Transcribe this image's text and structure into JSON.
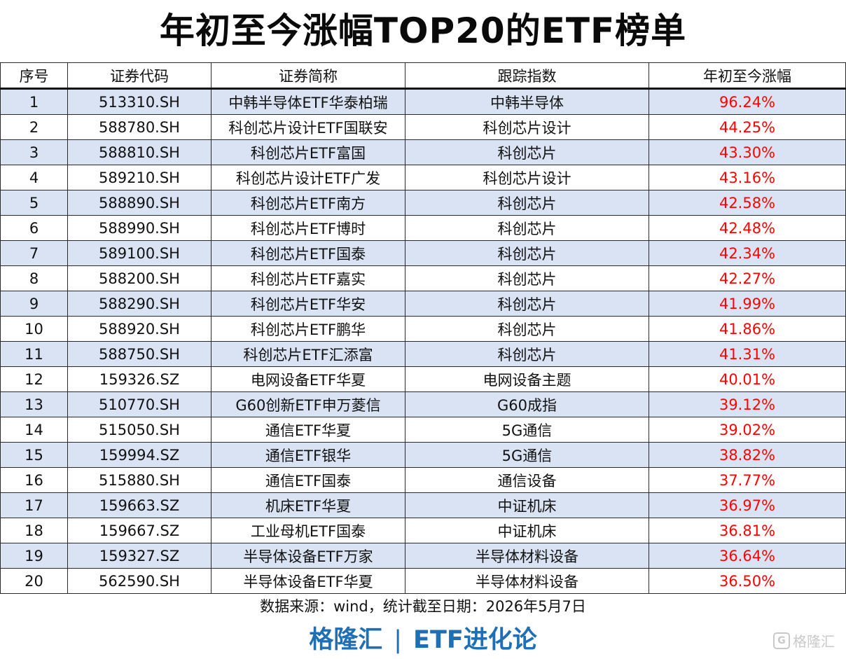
{
  "title": "年初至今涨幅TOP20的ETF榜单",
  "table": {
    "headers": [
      "序号",
      "证券代码",
      "证券简称",
      "跟踪指数",
      "年初至今涨幅"
    ],
    "rows": [
      [
        "1",
        "513310.SH",
        "中韩半导体ETF华泰柏瑞",
        "中韩半导体",
        "96.24%"
      ],
      [
        "2",
        "588780.SH",
        "科创芯片设计ETF国联安",
        "科创芯片设计",
        "44.25%"
      ],
      [
        "3",
        "588810.SH",
        "科创芯片ETF富国",
        "科创芯片",
        "43.30%"
      ],
      [
        "4",
        "589210.SH",
        "科创芯片设计ETF广发",
        "科创芯片设计",
        "43.16%"
      ],
      [
        "5",
        "588890.SH",
        "科创芯片ETF南方",
        "科创芯片",
        "42.58%"
      ],
      [
        "6",
        "588990.SH",
        "科创芯片ETF博时",
        "科创芯片",
        "42.48%"
      ],
      [
        "7",
        "589100.SH",
        "科创芯片ETF国泰",
        "科创芯片",
        "42.34%"
      ],
      [
        "8",
        "588200.SH",
        "科创芯片ETF嘉实",
        "科创芯片",
        "42.27%"
      ],
      [
        "9",
        "588290.SH",
        "科创芯片ETF华安",
        "科创芯片",
        "41.99%"
      ],
      [
        "10",
        "588920.SH",
        "科创芯片ETF鹏华",
        "科创芯片",
        "41.86%"
      ],
      [
        "11",
        "588750.SH",
        "科创芯片ETF汇添富",
        "科创芯片",
        "41.31%"
      ],
      [
        "12",
        "159326.SZ",
        "电网设备ETF华夏",
        "电网设备主题",
        "40.01%"
      ],
      [
        "13",
        "510770.SH",
        "G60创新ETF申万菱信",
        "G60成指",
        "39.12%"
      ],
      [
        "14",
        "515050.SH",
        "通信ETF华夏",
        "5G通信",
        "39.02%"
      ],
      [
        "15",
        "159994.SZ",
        "通信ETF银华",
        "5G通信",
        "38.82%"
      ],
      [
        "16",
        "515880.SH",
        "通信ETF国泰",
        "通信设备",
        "37.77%"
      ],
      [
        "17",
        "159663.SZ",
        "机床ETF华夏",
        "中证机床",
        "36.97%"
      ],
      [
        "18",
        "159667.SZ",
        "工业母机ETF国泰",
        "中证机床",
        "36.81%"
      ],
      [
        "19",
        "159327.SZ",
        "半导体设备ETF万家",
        "半导体材料设备",
        "36.64%"
      ],
      [
        "20",
        "562590.SH",
        "半导体设备ETF华夏",
        "半导体材料设备",
        "36.50%"
      ]
    ]
  },
  "source_note": "数据来源：wind，统计截至日期：2026年5月7日",
  "footer": {
    "left": "格隆汇",
    "separator": "|",
    "right": "ETF进化论"
  },
  "watermark": {
    "icon_letter": "G",
    "text": "格隆汇"
  },
  "colors": {
    "row_stripe": "#dae3f3",
    "pct_text": "#ff0000",
    "footer_text": "#1f6fb5"
  }
}
